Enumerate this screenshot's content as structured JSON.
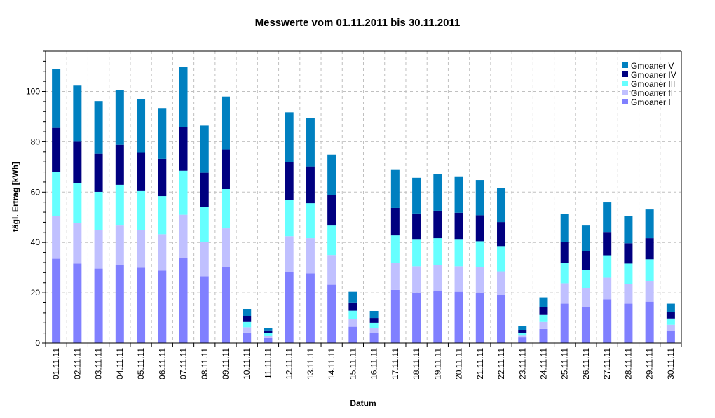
{
  "chart_data": {
    "type": "bar",
    "stacked": true,
    "title": "Messwerte vom 01.11.2011 bis 30.11.2011",
    "xlabel": "Datum",
    "ylabel": "tägl. Ertrag [kWh]",
    "ylim": [
      0,
      116
    ],
    "yticks": [
      0,
      20,
      40,
      60,
      80,
      100
    ],
    "grid": true,
    "legend_position": "top-right",
    "categories": [
      "01.11.11",
      "02.11.11",
      "03.11.11",
      "04.11.11",
      "05.11.11",
      "06.11.11",
      "07.11.11",
      "08.11.11",
      "09.11.11",
      "10.11.11",
      "11.11.11",
      "12.11.11",
      "13.11.11",
      "14.11.11",
      "15.11.11",
      "16.11.11",
      "17.11.11",
      "18.11.11",
      "19.11.11",
      "20.11.11",
      "21.11.11",
      "22.11.11",
      "23.11.11",
      "24.11.11",
      "25.11.11",
      "26.11.11",
      "27.11.11",
      "28.11.11",
      "29.11.11",
      "30.11.11"
    ],
    "series": [
      {
        "name": "Gmoaner I",
        "color": "#8080ff",
        "values": [
          33.5,
          31.6,
          29.6,
          31.0,
          29.9,
          28.8,
          33.8,
          26.6,
          30.2,
          4.2,
          2.0,
          28.2,
          27.7,
          23.2,
          6.5,
          3.9,
          21.2,
          20.1,
          20.7,
          20.4,
          20.1,
          19.0,
          2.2,
          5.6,
          15.7,
          14.3,
          17.4,
          15.7,
          16.5,
          4.8
        ]
      },
      {
        "name": "Gmoaner II",
        "color": "#c0c0ff",
        "values": [
          17.1,
          16.0,
          15.2,
          15.7,
          15.1,
          14.5,
          17.2,
          13.7,
          15.4,
          2.1,
          0.8,
          14.3,
          14.0,
          11.8,
          3.0,
          2.0,
          10.7,
          10.4,
          10.3,
          10.1,
          10.1,
          9.5,
          0.8,
          2.8,
          8.1,
          7.5,
          8.6,
          7.8,
          8.1,
          2.5
        ]
      },
      {
        "name": "Gmoaner III",
        "color": "#66ffff",
        "values": [
          17.3,
          16.1,
          15.3,
          16.2,
          15.4,
          15.1,
          17.5,
          13.7,
          15.6,
          2.1,
          1.1,
          14.5,
          13.9,
          11.7,
          3.4,
          2.2,
          10.9,
          10.6,
          10.7,
          10.6,
          10.3,
          9.8,
          1.1,
          2.8,
          8.1,
          7.3,
          8.9,
          8.1,
          8.7,
          2.5
        ]
      },
      {
        "name": "Gmoaner IV",
        "color": "#000080",
        "values": [
          17.6,
          16.3,
          15.1,
          15.9,
          15.4,
          14.8,
          17.3,
          13.7,
          15.7,
          2.2,
          0.9,
          14.8,
          14.6,
          12.0,
          3.0,
          1.9,
          10.9,
          10.4,
          10.9,
          10.7,
          10.3,
          9.8,
          1.1,
          3.1,
          8.4,
          7.5,
          9.0,
          8.1,
          8.4,
          2.5
        ]
      },
      {
        "name": "Gmoaner V",
        "color": "#0080c0",
        "values": [
          23.5,
          22.3,
          21.0,
          21.8,
          21.2,
          20.2,
          23.8,
          18.7,
          21.1,
          2.8,
          1.3,
          19.9,
          19.3,
          16.2,
          4.5,
          2.8,
          15.1,
          14.2,
          14.5,
          14.2,
          14.0,
          13.4,
          1.7,
          3.9,
          10.9,
          10.1,
          12.0,
          10.9,
          11.4,
          3.4
        ]
      }
    ]
  }
}
